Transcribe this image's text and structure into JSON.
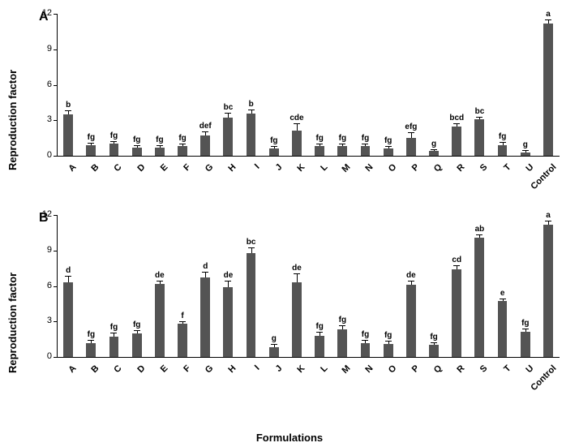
{
  "background_color": "#ffffff",
  "bar_color": "#545454",
  "axis_color": "#000000",
  "text_color": "#000000",
  "x_axis_label": "Formulations",
  "y_axis_label": "Reproduction factor",
  "label_fontsize": 13,
  "panel_label_fontsize": 16,
  "tick_fontsize": 11,
  "sig_fontsize": 10,
  "bar_width_ratio": 0.42,
  "categories": [
    "A",
    "B",
    "C",
    "D",
    "E",
    "F",
    "G",
    "H",
    "I",
    "J",
    "K",
    "L",
    "M",
    "N",
    "O",
    "P",
    "Q",
    "R",
    "S",
    "T",
    "U",
    "Control"
  ],
  "panels": {
    "A": {
      "label": "A",
      "ylim": [
        0,
        12
      ],
      "ytick_step": 3,
      "bars": [
        {
          "cat": "A",
          "value": 3.5,
          "err": 0.3,
          "sig": "b"
        },
        {
          "cat": "B",
          "value": 0.9,
          "err": 0.15,
          "sig": "fg"
        },
        {
          "cat": "C",
          "value": 1.0,
          "err": 0.2,
          "sig": "fg"
        },
        {
          "cat": "D",
          "value": 0.7,
          "err": 0.15,
          "sig": "fg"
        },
        {
          "cat": "E",
          "value": 0.7,
          "err": 0.15,
          "sig": "fg"
        },
        {
          "cat": "F",
          "value": 0.8,
          "err": 0.15,
          "sig": "fg"
        },
        {
          "cat": "G",
          "value": 1.7,
          "err": 0.3,
          "sig": "def"
        },
        {
          "cat": "H",
          "value": 3.2,
          "err": 0.35,
          "sig": "bc"
        },
        {
          "cat": "I",
          "value": 3.6,
          "err": 0.25,
          "sig": "b"
        },
        {
          "cat": "J",
          "value": 0.6,
          "err": 0.15,
          "sig": "fg"
        },
        {
          "cat": "K",
          "value": 2.1,
          "err": 0.55,
          "sig": "cde"
        },
        {
          "cat": "L",
          "value": 0.8,
          "err": 0.15,
          "sig": "fg"
        },
        {
          "cat": "M",
          "value": 0.8,
          "err": 0.15,
          "sig": "fg"
        },
        {
          "cat": "N",
          "value": 0.8,
          "err": 0.15,
          "sig": "fg"
        },
        {
          "cat": "O",
          "value": 0.6,
          "err": 0.15,
          "sig": "fg"
        },
        {
          "cat": "P",
          "value": 1.5,
          "err": 0.4,
          "sig": "efg"
        },
        {
          "cat": "Q",
          "value": 0.4,
          "err": 0.1,
          "sig": "g"
        },
        {
          "cat": "R",
          "value": 2.5,
          "err": 0.2,
          "sig": "bcd"
        },
        {
          "cat": "S",
          "value": 3.1,
          "err": 0.15,
          "sig": "bc"
        },
        {
          "cat": "T",
          "value": 0.9,
          "err": 0.2,
          "sig": "fg"
        },
        {
          "cat": "U",
          "value": 0.3,
          "err": 0.1,
          "sig": "g"
        },
        {
          "cat": "Control",
          "value": 11.2,
          "err": 0.25,
          "sig": "a"
        }
      ]
    },
    "B": {
      "label": "B",
      "ylim": [
        0,
        12
      ],
      "ytick_step": 3,
      "bars": [
        {
          "cat": "A",
          "value": 6.3,
          "err": 0.5,
          "sig": "d"
        },
        {
          "cat": "B",
          "value": 1.2,
          "err": 0.2,
          "sig": "fg"
        },
        {
          "cat": "C",
          "value": 1.7,
          "err": 0.3,
          "sig": "fg"
        },
        {
          "cat": "D",
          "value": 2.0,
          "err": 0.2,
          "sig": "fg"
        },
        {
          "cat": "E",
          "value": 6.2,
          "err": 0.2,
          "sig": "de"
        },
        {
          "cat": "F",
          "value": 2.8,
          "err": 0.15,
          "sig": "f"
        },
        {
          "cat": "G",
          "value": 6.7,
          "err": 0.4,
          "sig": "d"
        },
        {
          "cat": "H",
          "value": 5.9,
          "err": 0.5,
          "sig": "de"
        },
        {
          "cat": "I",
          "value": 8.8,
          "err": 0.4,
          "sig": "bc"
        },
        {
          "cat": "J",
          "value": 0.8,
          "err": 0.2,
          "sig": "g"
        },
        {
          "cat": "K",
          "value": 6.3,
          "err": 0.7,
          "sig": "de"
        },
        {
          "cat": "L",
          "value": 1.8,
          "err": 0.25,
          "sig": "fg"
        },
        {
          "cat": "M",
          "value": 2.3,
          "err": 0.3,
          "sig": "fg"
        },
        {
          "cat": "N",
          "value": 1.2,
          "err": 0.15,
          "sig": "fg"
        },
        {
          "cat": "O",
          "value": 1.1,
          "err": 0.2,
          "sig": "fg"
        },
        {
          "cat": "P",
          "value": 6.1,
          "err": 0.25,
          "sig": "de"
        },
        {
          "cat": "Q",
          "value": 1.0,
          "err": 0.2,
          "sig": "fg"
        },
        {
          "cat": "R",
          "value": 7.4,
          "err": 0.3,
          "sig": "cd"
        },
        {
          "cat": "S",
          "value": 10.1,
          "err": 0.2,
          "sig": "ab"
        },
        {
          "cat": "T",
          "value": 4.7,
          "err": 0.2,
          "sig": "e"
        },
        {
          "cat": "U",
          "value": 2.1,
          "err": 0.25,
          "sig": "fg"
        },
        {
          "cat": "Control",
          "value": 11.2,
          "err": 0.25,
          "sig": "a"
        }
      ]
    }
  }
}
